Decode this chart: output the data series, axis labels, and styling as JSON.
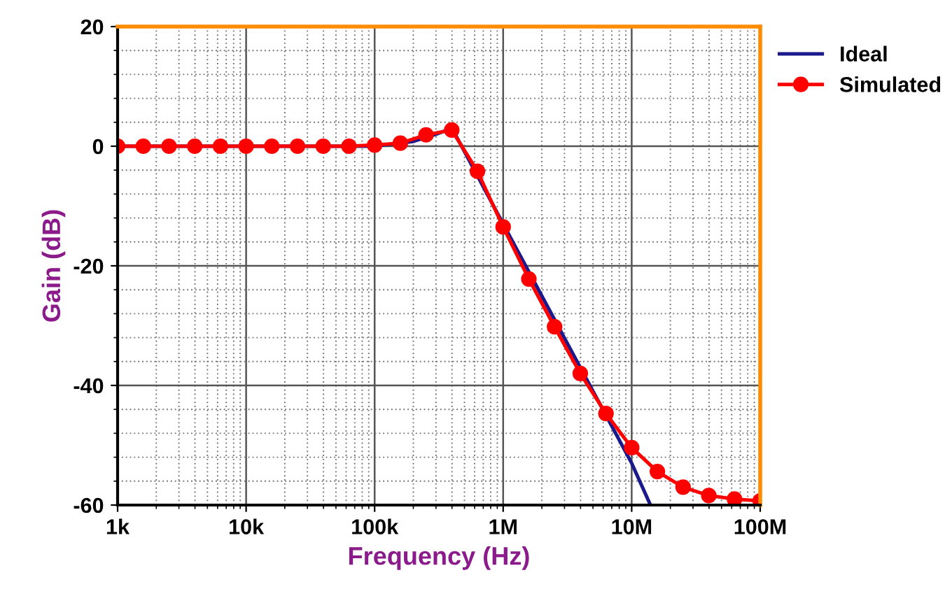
{
  "chart_data": {
    "type": "line",
    "xlabel": "Frequency (Hz)",
    "ylabel": "Gain (dB)",
    "log": "x",
    "xlim": [
      1000,
      100000000
    ],
    "xticks": [
      {
        "value": 1000,
        "label": "1k"
      },
      {
        "value": 10000,
        "label": "10k"
      },
      {
        "value": 100000,
        "label": "100k"
      },
      {
        "value": 1000000,
        "label": "1M"
      },
      {
        "value": 10000000,
        "label": "10M"
      },
      {
        "value": 100000000,
        "label": "100M"
      }
    ],
    "ylim": [
      -60,
      20
    ],
    "yticks": [
      -60,
      -40,
      -20,
      0,
      20
    ],
    "grid": true,
    "legend": "top right",
    "series": [
      {
        "name": "Ideal",
        "color": "#1a1a8c",
        "marker": "none",
        "x": [
          1000,
          100000,
          200000,
          300000,
          400000,
          1000000,
          10000000,
          14000000
        ],
        "values": [
          0,
          0,
          0.8,
          2,
          3,
          -13,
          -53,
          -60
        ]
      },
      {
        "name": "Simulated",
        "color": "#ff0000",
        "marker": "circle",
        "x": [
          1000,
          1585,
          2512,
          3981,
          6310,
          10000,
          15850,
          25120,
          39810,
          63100,
          100000,
          158500,
          251200,
          398100,
          631000,
          1000000,
          1585000,
          2512000,
          3981000,
          6310000,
          10000000,
          15850000,
          25120000,
          39810000,
          63100000,
          100000000
        ],
        "values": [
          0,
          0,
          0,
          0,
          0,
          0,
          0,
          0,
          0,
          0,
          0.2,
          0.5,
          1.9,
          2.7,
          -4.2,
          -13.5,
          -22.2,
          -30.2,
          -38,
          -44.7,
          -50.4,
          -54.4,
          -57,
          -58.4,
          -59,
          -59.3
        ]
      }
    ]
  }
}
